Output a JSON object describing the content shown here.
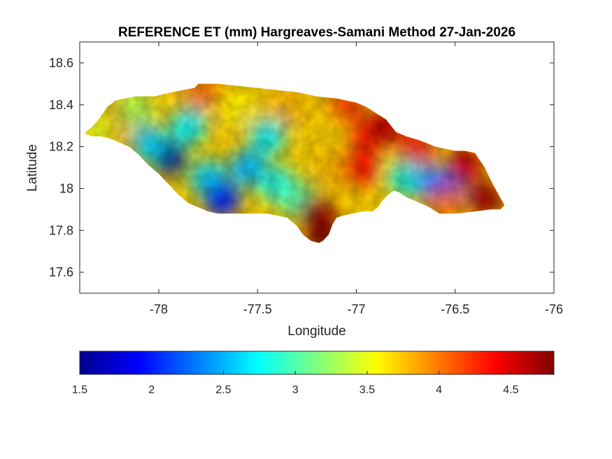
{
  "chart_data": {
    "type": "heatmap",
    "title": "REFERENCE ET (mm) Hargreaves-Samani Method  27-Jan-2026",
    "xlabel": "Longitude",
    "ylabel": "Latitude",
    "xlim": [
      -78.4,
      -76
    ],
    "ylim": [
      17.5,
      18.7
    ],
    "xticks": [
      -78,
      -77.5,
      -77,
      -76.5,
      -76
    ],
    "xtick_labels": [
      "-78",
      "-77.5",
      "-77",
      "-76.5",
      "-76"
    ],
    "yticks": [
      17.6,
      17.8,
      18,
      18.2,
      18.4,
      18.6
    ],
    "ytick_labels": [
      "17.6",
      "17.8",
      "18",
      "18.2",
      "18.4",
      "18.6"
    ],
    "colormap": "jet",
    "colorbar": {
      "location": "bottom",
      "range": [
        1.5,
        4.8
      ],
      "ticks": [
        1.5,
        2,
        2.5,
        3,
        3.5,
        4,
        4.5
      ],
      "tick_labels": [
        "1.5",
        "2",
        "2.5",
        "3",
        "3.5",
        "4",
        "4.5"
      ]
    },
    "outline": [
      [
        -78.37,
        18.27
      ],
      [
        -78.33,
        18.3
      ],
      [
        -78.29,
        18.35
      ],
      [
        -78.26,
        18.39
      ],
      [
        -78.22,
        18.42
      ],
      [
        -78.17,
        18.43
      ],
      [
        -78.12,
        18.44
      ],
      [
        -78.07,
        18.44
      ],
      [
        -78.02,
        18.44
      ],
      [
        -77.98,
        18.45
      ],
      [
        -77.93,
        18.46
      ],
      [
        -77.88,
        18.47
      ],
      [
        -77.82,
        18.48
      ],
      [
        -77.8,
        18.5
      ],
      [
        -77.7,
        18.5
      ],
      [
        -77.6,
        18.49
      ],
      [
        -77.5,
        18.48
      ],
      [
        -77.4,
        18.47
      ],
      [
        -77.3,
        18.46
      ],
      [
        -77.2,
        18.44
      ],
      [
        -77.1,
        18.43
      ],
      [
        -77.0,
        18.41
      ],
      [
        -76.95,
        18.39
      ],
      [
        -76.9,
        18.36
      ],
      [
        -76.85,
        18.33
      ],
      [
        -76.8,
        18.27
      ],
      [
        -76.75,
        18.25
      ],
      [
        -76.68,
        18.23
      ],
      [
        -76.6,
        18.2
      ],
      [
        -76.5,
        18.18
      ],
      [
        -76.45,
        18.18
      ],
      [
        -76.4,
        18.17
      ],
      [
        -76.35,
        18.1
      ],
      [
        -76.32,
        18.04
      ],
      [
        -76.28,
        17.97
      ],
      [
        -76.25,
        17.92
      ],
      [
        -76.27,
        17.9
      ],
      [
        -76.32,
        17.9
      ],
      [
        -76.4,
        17.89
      ],
      [
        -76.5,
        17.88
      ],
      [
        -76.58,
        17.88
      ],
      [
        -76.63,
        17.91
      ],
      [
        -76.7,
        17.94
      ],
      [
        -76.75,
        17.96
      ],
      [
        -76.78,
        17.98
      ],
      [
        -76.81,
        17.99
      ],
      [
        -76.84,
        17.97
      ],
      [
        -76.87,
        17.94
      ],
      [
        -76.89,
        17.91
      ],
      [
        -76.92,
        17.89
      ],
      [
        -76.97,
        17.89
      ],
      [
        -77.02,
        17.88
      ],
      [
        -77.07,
        17.87
      ],
      [
        -77.1,
        17.86
      ],
      [
        -77.12,
        17.83
      ],
      [
        -77.14,
        17.78
      ],
      [
        -77.17,
        17.75
      ],
      [
        -77.19,
        17.74
      ],
      [
        -77.23,
        17.75
      ],
      [
        -77.27,
        17.78
      ],
      [
        -77.3,
        17.82
      ],
      [
        -77.35,
        17.86
      ],
      [
        -77.4,
        17.87
      ],
      [
        -77.45,
        17.88
      ],
      [
        -77.5,
        17.88
      ],
      [
        -77.6,
        17.88
      ],
      [
        -77.7,
        17.88
      ],
      [
        -77.75,
        17.89
      ],
      [
        -77.8,
        17.91
      ],
      [
        -77.85,
        17.93
      ],
      [
        -77.9,
        17.97
      ],
      [
        -77.95,
        18.02
      ],
      [
        -78.0,
        18.07
      ],
      [
        -78.05,
        18.11
      ],
      [
        -78.1,
        18.16
      ],
      [
        -78.15,
        18.2
      ],
      [
        -78.2,
        18.22
      ],
      [
        -78.25,
        18.24
      ],
      [
        -78.3,
        18.25
      ],
      [
        -78.34,
        18.25
      ],
      [
        -78.37,
        18.26
      ]
    ],
    "field_blobs": [
      {
        "lon": -77.95,
        "lat": 18.15,
        "value": 1.6
      },
      {
        "lon": -78.05,
        "lat": 18.22,
        "value": 2.6
      },
      {
        "lon": -77.85,
        "lat": 18.3,
        "value": 2.7
      },
      {
        "lon": -77.75,
        "lat": 18.05,
        "value": 2.6
      },
      {
        "lon": -77.68,
        "lat": 17.95,
        "value": 2.0
      },
      {
        "lon": -77.55,
        "lat": 18.1,
        "value": 2.5
      },
      {
        "lon": -77.45,
        "lat": 18.25,
        "value": 2.7
      },
      {
        "lon": -77.4,
        "lat": 18.02,
        "value": 2.8
      },
      {
        "lon": -77.3,
        "lat": 17.95,
        "value": 3.0
      },
      {
        "lon": -77.6,
        "lat": 18.38,
        "value": 3.6
      },
      {
        "lon": -77.78,
        "lat": 18.46,
        "value": 4.0
      },
      {
        "lon": -78.22,
        "lat": 18.32,
        "value": 4.1
      },
      {
        "lon": -78.3,
        "lat": 18.28,
        "value": 3.5
      },
      {
        "lon": -77.35,
        "lat": 18.4,
        "value": 3.8
      },
      {
        "lon": -77.15,
        "lat": 18.3,
        "value": 3.7
      },
      {
        "lon": -77.1,
        "lat": 18.1,
        "value": 3.8
      },
      {
        "lon": -77.2,
        "lat": 17.88,
        "value": 4.7
      },
      {
        "lon": -77.17,
        "lat": 17.78,
        "value": 4.8
      },
      {
        "lon": -76.98,
        "lat": 18.1,
        "value": 4.4
      },
      {
        "lon": -76.95,
        "lat": 18.25,
        "value": 4.3
      },
      {
        "lon": -76.85,
        "lat": 18.3,
        "value": 4.6
      },
      {
        "lon": -76.7,
        "lat": 18.18,
        "value": 4.4
      },
      {
        "lon": -76.75,
        "lat": 18.05,
        "value": 2.8
      },
      {
        "lon": -76.62,
        "lat": 18.03,
        "value": 2.4
      },
      {
        "lon": -76.55,
        "lat": 17.98,
        "value": 2.0
      },
      {
        "lon": -76.45,
        "lat": 18.12,
        "value": 4.6
      },
      {
        "lon": -76.35,
        "lat": 17.95,
        "value": 4.7
      },
      {
        "lon": -76.55,
        "lat": 17.92,
        "value": 4.0
      },
      {
        "lon": -77.05,
        "lat": 18.4,
        "value": 4.2
      },
      {
        "lon": -78.12,
        "lat": 18.38,
        "value": 3.3
      }
    ]
  }
}
